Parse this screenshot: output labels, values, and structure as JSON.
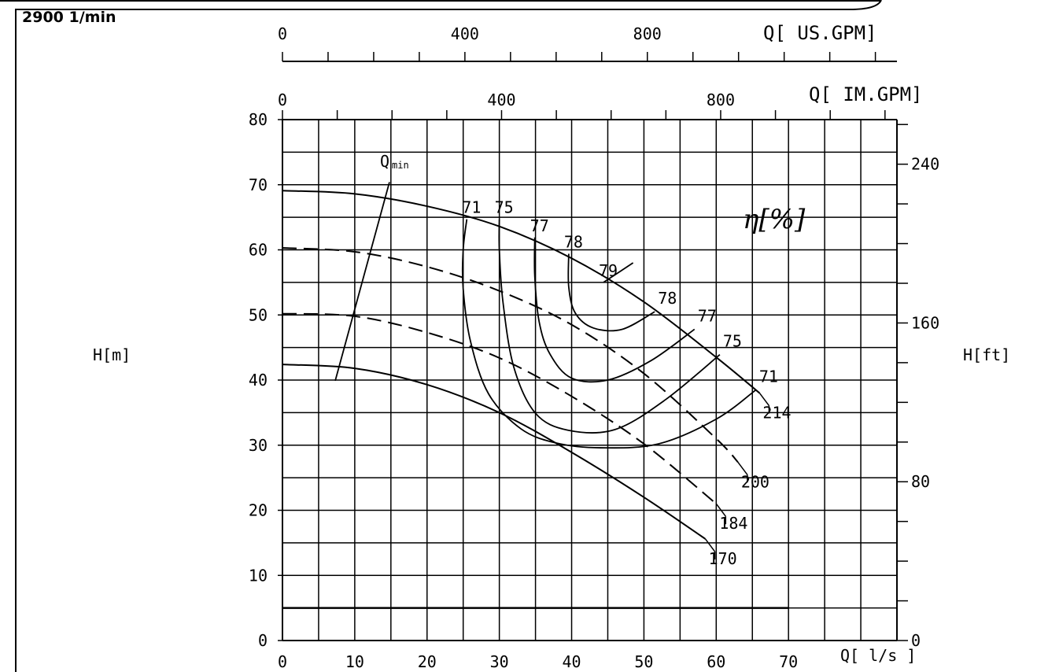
{
  "header": {
    "speed": "2900  1/min"
  },
  "chart_data": {
    "type": "line",
    "title": "",
    "xlabel": "Q[ l/s ]",
    "ylabel": "H[m]",
    "ylabel_right": "H[ft]",
    "xlabel_top_us": "Q[ US.GPM]",
    "xlabel_top_im": "Q[ IM.GPM]",
    "efficiency_label": "η[%]",
    "xlim": [
      0,
      85
    ],
    "ylim": [
      0,
      80
    ],
    "grid": true,
    "x_ticks": [
      "0",
      "10",
      "20",
      "30",
      "40",
      "50",
      "60",
      "70"
    ],
    "y_ticks": [
      "0",
      "10",
      "20",
      "30",
      "40",
      "50",
      "60",
      "70",
      "80"
    ],
    "ft_ticks": [
      "0",
      "80",
      "160",
      "240"
    ],
    "us_gpm_ticks": [
      "0",
      "400",
      "800"
    ],
    "im_gpm_ticks": [
      "0",
      "400",
      "800"
    ],
    "series": [
      {
        "name": "214",
        "style": "solid",
        "x": [
          0,
          10,
          20,
          30,
          40,
          50,
          60,
          66
        ],
        "y": [
          69.1,
          68.6,
          66.7,
          63.6,
          58.7,
          52,
          43.5,
          38
        ]
      },
      {
        "name": "200",
        "style": "dashed",
        "x": [
          0,
          10,
          20,
          30,
          40,
          50,
          60,
          63
        ],
        "y": [
          60.3,
          59.7,
          57.4,
          53.7,
          48.5,
          41,
          31,
          27.4
        ]
      },
      {
        "name": "184",
        "style": "dashed",
        "x": [
          0,
          10,
          20,
          30,
          40,
          50,
          60
        ],
        "y": [
          50.2,
          49.8,
          47.3,
          43.4,
          37.5,
          30.2,
          21
        ]
      },
      {
        "name": "170",
        "style": "solid",
        "x": [
          0,
          10,
          20,
          30,
          40,
          50,
          58.5
        ],
        "y": [
          42.4,
          41.8,
          39.3,
          35,
          28.9,
          22,
          15.6
        ]
      }
    ],
    "efficiency_curves": [
      {
        "label": "71",
        "x": [
          25.5,
          25,
          25,
          26,
          28.5,
          33,
          38,
          44,
          52,
          60,
          65.5
        ],
        "y": [
          64.7,
          60,
          54,
          46,
          37.9,
          32.5,
          30.3,
          29.6,
          30.2,
          34,
          38.5
        ]
      },
      {
        "label": "75",
        "x": [
          30,
          30,
          30.5,
          32,
          35,
          39.5,
          46,
          53,
          60.5
        ],
        "y": [
          64.7,
          60,
          52,
          42,
          34.9,
          32.3,
          32.4,
          37,
          43.9
        ]
      },
      {
        "label": "77",
        "x": [
          34.9,
          34.9,
          35.5,
          37,
          40,
          45,
          51,
          57
        ],
        "y": [
          61.9,
          56,
          49,
          44,
          40.3,
          40,
          43,
          47.8
        ]
      },
      {
        "label": "78",
        "x": [
          39.6,
          39.6,
          40.5,
          43,
          47,
          51.5
        ],
        "y": [
          59.4,
          54.3,
          50.3,
          48,
          47.8,
          50.5
        ]
      },
      {
        "label": "79",
        "x": [
          44.4,
          48.5
        ],
        "y": [
          55,
          58
        ]
      }
    ],
    "qmin": {
      "label": "Qmin",
      "x": [
        7.3,
        14.8
      ],
      "y": [
        39.9,
        70.4
      ]
    }
  }
}
